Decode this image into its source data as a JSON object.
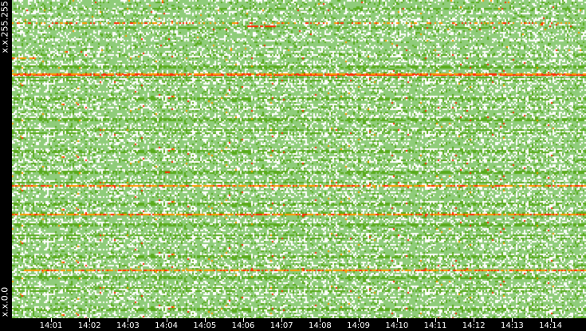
{
  "chart_data": {
    "type": "heatmap",
    "x_tick_labels": [
      "14:01",
      "14:02",
      "14:03",
      "14:04",
      "14:05",
      "14:06",
      "14:07",
      "14:08",
      "14:09",
      "14:10",
      "14:11",
      "14:12",
      "14:13",
      "14:14"
    ],
    "y_labels": {
      "top": "x.x.255.255",
      "bottom": "x.x.0.0"
    },
    "color_scale": {
      "empty": "#ffffff",
      "low": "#8fcc7a",
      "mid": "#5aab1c",
      "high": "#ff9900",
      "max": "#ff2a00"
    },
    "grid": false,
    "legend": "none"
  }
}
